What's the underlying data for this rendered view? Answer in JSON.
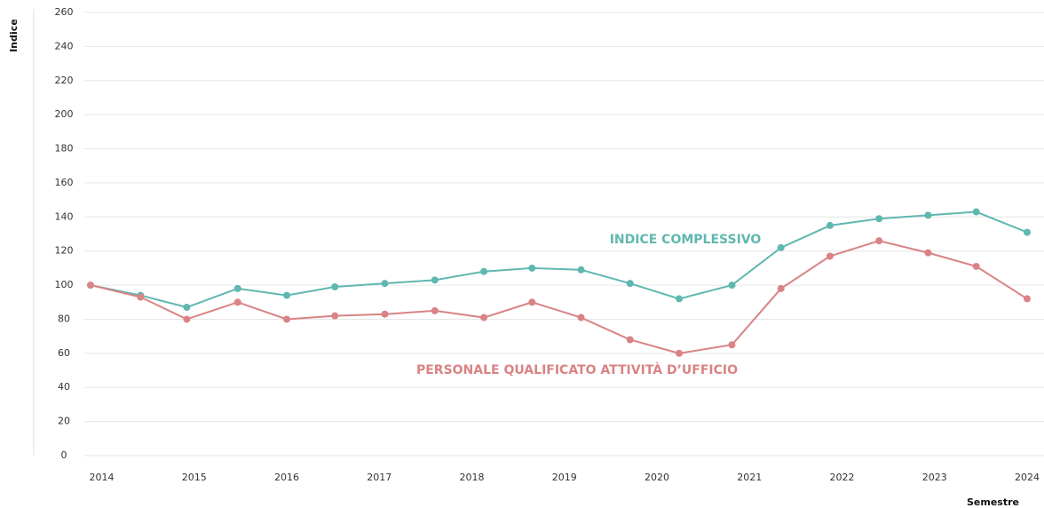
{
  "chart_data": {
    "type": "line",
    "x": [
      2013.88,
      2014.42,
      2014.92,
      2015.47,
      2016.0,
      2016.52,
      2017.06,
      2017.6,
      2018.13,
      2018.65,
      2019.18,
      2019.71,
      2020.24,
      2020.81,
      2021.34,
      2021.87,
      2022.4,
      2022.93,
      2023.45,
      2024.0
    ],
    "series": [
      {
        "name": "INDICE COMPLESSIVO",
        "color": "#5fb8b0",
        "values": [
          100,
          94,
          87,
          98,
          94,
          99,
          101,
          103,
          108,
          110,
          109,
          101,
          92,
          100,
          122,
          135,
          139,
          141,
          143,
          131
        ]
      },
      {
        "name": "PERSONALE QUALIFICATO ATTIVITÀ D’UFFICIO",
        "color": "#d98385",
        "values": [
          100,
          93,
          80,
          90,
          80,
          82,
          83,
          85,
          81,
          90,
          81,
          68,
          60,
          65,
          98,
          117,
          126,
          119,
          111,
          92
        ]
      }
    ],
    "xlim": [
      2013.88,
      2024.0
    ],
    "xticks": [
      2014,
      2015,
      2016,
      2017,
      2018,
      2019,
      2020,
      2021,
      2022,
      2023,
      2024
    ],
    "ylim": [
      0,
      260
    ],
    "yticks": [
      0,
      20,
      40,
      60,
      80,
      100,
      120,
      140,
      160,
      180,
      200,
      220,
      240,
      260
    ],
    "ylabel": "Indice",
    "xlabel": "Semestre",
    "grid": true
  }
}
